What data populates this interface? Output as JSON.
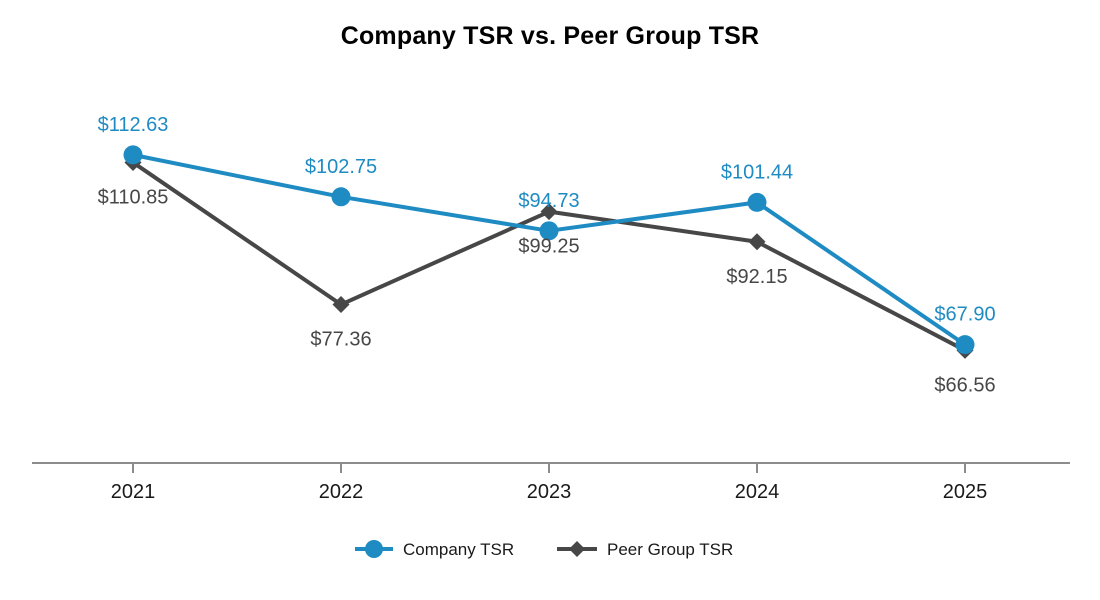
{
  "chart_data": {
    "type": "line",
    "title": "Company TSR vs. Peer Group TSR",
    "xlabel": "",
    "ylabel": "",
    "categories": [
      "2021",
      "2022",
      "2023",
      "2024",
      "2025"
    ],
    "ylim": [
      40,
      135
    ],
    "grid": false,
    "legend_position": "bottom-center",
    "series": [
      {
        "name": "Company TSR",
        "color": "#1f8bc3",
        "marker": "circle",
        "values": [
          112.63,
          102.75,
          94.73,
          101.44,
          67.9
        ],
        "labels": [
          "$112.63",
          "$102.75",
          "$94.73",
          "$101.44",
          "$67.90"
        ],
        "label_position": "above"
      },
      {
        "name": "Peer Group TSR",
        "color": "#474747",
        "marker": "diamond",
        "values": [
          110.85,
          77.36,
          99.25,
          92.15,
          66.56
        ],
        "labels": [
          "$110.85",
          "$77.36",
          "$99.25",
          "$92.15",
          "$66.56"
        ],
        "label_position": "below"
      }
    ]
  }
}
